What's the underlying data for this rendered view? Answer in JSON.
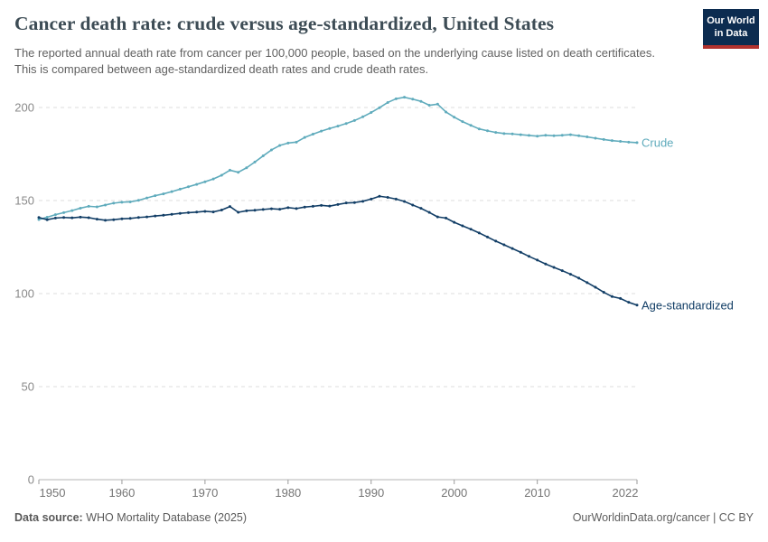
{
  "header": {
    "title": "Cancer death rate: crude versus age-standardized, United States",
    "subtitle": "The reported annual death rate from cancer per 100,000 people, based on the underlying cause listed on death certificates. This is compared between age-standardized death rates and crude death rates.",
    "logo": {
      "line1": "Our World",
      "line2": "in Data",
      "bg_color": "#0c2c50",
      "stripe_color": "#b1322e"
    }
  },
  "footer": {
    "source_label": "Data source:",
    "source_text": " WHO Mortality Database (2025)",
    "right_text": "OurWorldinData.org/cancer | CC BY"
  },
  "chart_data": {
    "type": "line",
    "title": "Cancer death rate: crude versus age-standardized, United States",
    "xlabel": "",
    "ylabel": "",
    "xlim": [
      1950,
      2022
    ],
    "ylim": [
      0,
      215
    ],
    "x_ticks": [
      1950,
      1960,
      1970,
      1980,
      1990,
      2000,
      2010,
      2022
    ],
    "y_ticks": [
      0,
      50,
      100,
      150,
      200
    ],
    "grid": "horizontal-dashed",
    "legend_position": "line-end-labels",
    "colors": {
      "grid": "#dcdcdc",
      "axis": "#b5b5b5",
      "tick": "#9a9a9a"
    },
    "x": [
      1950,
      1951,
      1952,
      1953,
      1954,
      1955,
      1956,
      1957,
      1958,
      1959,
      1960,
      1961,
      1962,
      1963,
      1964,
      1965,
      1966,
      1967,
      1968,
      1969,
      1970,
      1971,
      1972,
      1973,
      1974,
      1975,
      1976,
      1977,
      1978,
      1979,
      1980,
      1981,
      1982,
      1983,
      1984,
      1985,
      1986,
      1987,
      1988,
      1989,
      1990,
      1991,
      1992,
      1993,
      1994,
      1995,
      1996,
      1997,
      1998,
      1999,
      2000,
      2001,
      2002,
      2003,
      2004,
      2005,
      2006,
      2007,
      2008,
      2009,
      2010,
      2011,
      2012,
      2013,
      2014,
      2015,
      2016,
      2017,
      2018,
      2019,
      2020,
      2021,
      2022
    ],
    "series": [
      {
        "name": "Crude",
        "color": "#5fabbc",
        "values": [
          139.8,
          141.0,
          142.4,
          143.5,
          144.6,
          145.9,
          146.9,
          146.6,
          147.6,
          148.6,
          149.1,
          149.3,
          150.1,
          151.4,
          152.6,
          153.6,
          154.8,
          156.1,
          157.4,
          158.7,
          160.1,
          161.6,
          163.6,
          166.3,
          165.2,
          167.6,
          170.7,
          174.0,
          177.2,
          179.6,
          180.9,
          181.4,
          183.9,
          185.7,
          187.3,
          188.7,
          190.0,
          191.4,
          193.0,
          195.0,
          197.3,
          199.9,
          202.7,
          204.7,
          205.5,
          204.5,
          203.3,
          201.2,
          201.8,
          197.6,
          194.8,
          192.4,
          190.4,
          188.5,
          187.5,
          186.6,
          186.0,
          185.8,
          185.4,
          185.0,
          184.6,
          185.1,
          184.8,
          185.1,
          185.4,
          184.8,
          184.2,
          183.5,
          182.8,
          182.2,
          181.8,
          181.4,
          181.1
        ]
      },
      {
        "name": "Age-standardized",
        "color": "#123e66",
        "values": [
          140.9,
          139.7,
          140.6,
          140.9,
          140.7,
          141.1,
          140.8,
          140.0,
          139.4,
          139.7,
          140.2,
          140.4,
          140.9,
          141.2,
          141.7,
          142.1,
          142.6,
          143.1,
          143.5,
          143.8,
          144.2,
          143.9,
          144.9,
          146.8,
          143.7,
          144.5,
          144.8,
          145.2,
          145.6,
          145.3,
          146.2,
          145.7,
          146.5,
          146.9,
          147.4,
          147.0,
          147.9,
          148.7,
          148.9,
          149.6,
          150.8,
          152.3,
          151.7,
          150.8,
          149.5,
          147.6,
          145.8,
          143.6,
          141.2,
          140.6,
          138.3,
          136.4,
          134.6,
          132.6,
          130.4,
          128.2,
          126.2,
          124.2,
          122.2,
          120.0,
          118.0,
          115.9,
          114.1,
          112.3,
          110.4,
          108.3,
          105.9,
          103.4,
          100.7,
          98.4,
          97.4,
          95.3,
          93.8
        ]
      }
    ]
  }
}
